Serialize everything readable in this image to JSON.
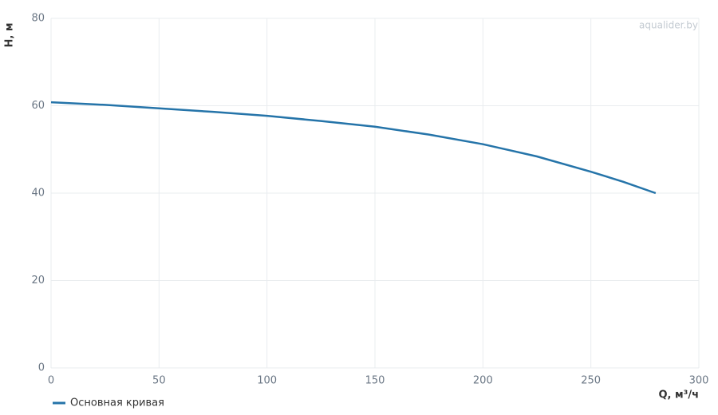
{
  "chart_data": {
    "type": "line",
    "watermark": "aqualider.by",
    "x_label": "Q, м³/ч",
    "y_label": "H, м",
    "x": [
      0,
      25,
      50,
      75,
      100,
      125,
      150,
      175,
      200,
      225,
      250,
      265,
      280
    ],
    "series": [
      {
        "name": "Основная кривая",
        "color": "#2574a9",
        "values": [
          60.8,
          60.2,
          59.4,
          58.6,
          57.7,
          56.5,
          55.2,
          53.4,
          51.2,
          48.4,
          44.9,
          42.6,
          40.0
        ]
      }
    ],
    "xlim": [
      0,
      300
    ],
    "xticks": [
      0,
      50,
      100,
      150,
      200,
      250,
      300
    ],
    "ylim": [
      0,
      80
    ],
    "yticks": [
      0,
      20,
      40,
      60,
      80
    ],
    "grid": true
  }
}
